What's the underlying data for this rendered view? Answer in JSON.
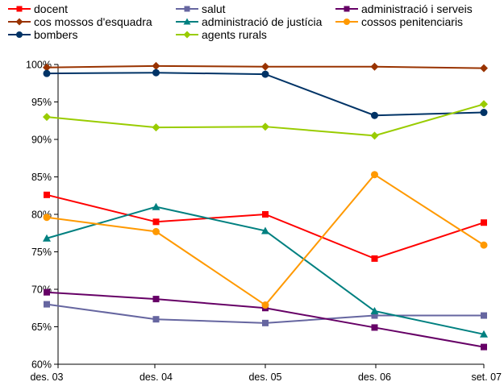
{
  "chart_data": {
    "type": "line",
    "title": "",
    "xlabel": "",
    "ylabel": "",
    "categories": [
      "des. 03",
      "des. 04",
      "des. 05",
      "des. 06",
      "set. 07"
    ],
    "ylim": [
      60,
      100
    ],
    "yticks": [
      60,
      65,
      70,
      75,
      80,
      85,
      90,
      95,
      100
    ],
    "ytick_labels": [
      "60%",
      "65%",
      "70%",
      "75%",
      "80%",
      "85%",
      "90%",
      "95%",
      "100%"
    ],
    "grid": false,
    "legend_position": "top",
    "series": [
      {
        "name": "docent",
        "color": "#ff0000",
        "marker": "square",
        "values": [
          82.6,
          79.0,
          80.0,
          74.1,
          78.9
        ]
      },
      {
        "name": "salut",
        "color": "#6666a0",
        "marker": "square",
        "values": [
          68.0,
          66.0,
          65.5,
          66.5,
          66.5
        ]
      },
      {
        "name": "administració i serveis",
        "color": "#660066",
        "marker": "square",
        "values": [
          69.6,
          68.7,
          67.5,
          64.9,
          62.3
        ]
      },
      {
        "name": "cos mossos d'esquadra",
        "color": "#993300",
        "marker": "diamond",
        "values": [
          99.6,
          99.8,
          99.7,
          99.7,
          99.5
        ]
      },
      {
        "name": "administració de justícia",
        "color": "#008080",
        "marker": "triangle",
        "values": [
          76.8,
          81.0,
          77.8,
          67.1,
          64.0
        ]
      },
      {
        "name": "cossos penitenciaris",
        "color": "#ff9900",
        "marker": "circle",
        "values": [
          79.6,
          77.7,
          67.9,
          85.3,
          75.9
        ]
      },
      {
        "name": "bombers",
        "color": "#003366",
        "marker": "circle",
        "values": [
          98.8,
          98.9,
          98.7,
          93.2,
          93.6
        ]
      },
      {
        "name": "agents rurals",
        "color": "#99cc00",
        "marker": "diamond",
        "values": [
          93.0,
          91.6,
          91.7,
          90.5,
          94.7
        ]
      }
    ]
  }
}
